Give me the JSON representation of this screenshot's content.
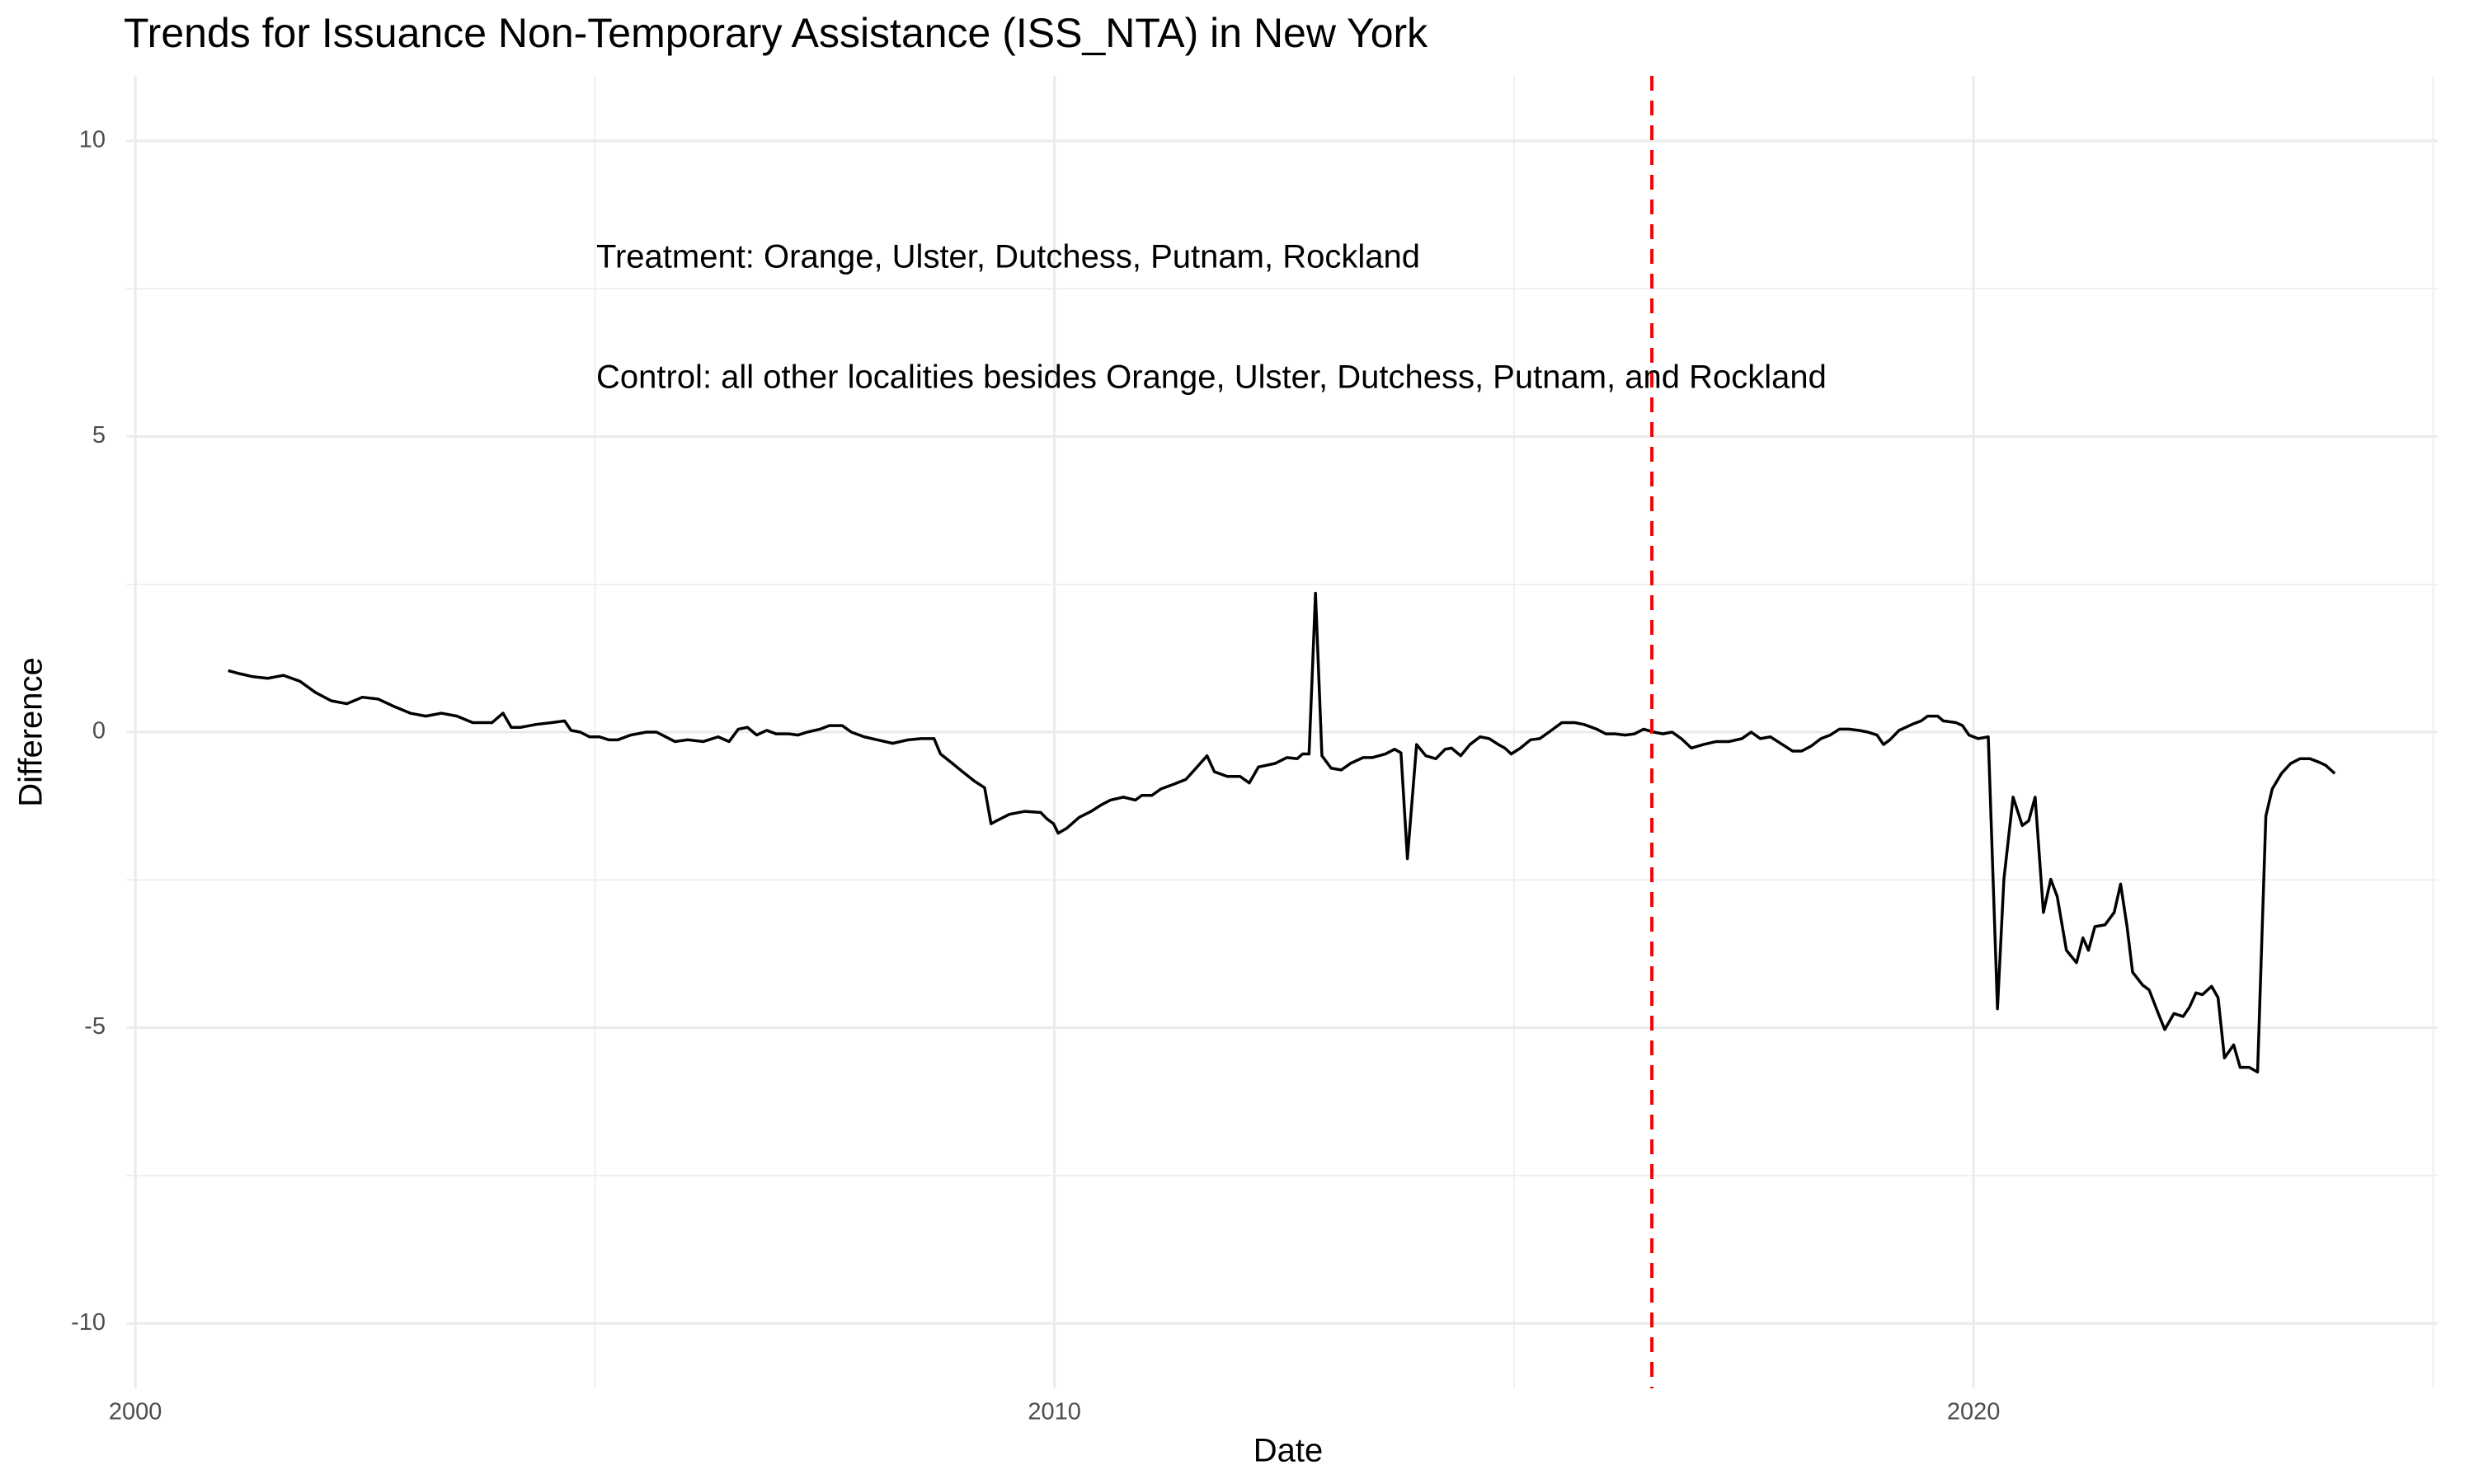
{
  "chart_data": {
    "type": "line",
    "title": "Trends for Issuance Non-Temporary Assistance (ISS_NTA) in New York",
    "x_label": "Date",
    "y_label": "Difference",
    "annotations": [
      "Treatment: Orange, Ulster, Dutchess, Putnam, Rockland",
      "Control: all other localities besides Orange, Ulster, Dutchess, Putnam, and Rockland"
    ],
    "color": "#000000",
    "x": [
      2001.01,
      2001.13,
      2001.27,
      2001.44,
      2001.61,
      2001.79,
      2001.96,
      2002.13,
      2002.3,
      2002.47,
      2002.64,
      2002.82,
      2002.99,
      2003.16,
      2003.33,
      2003.5,
      2003.67,
      2003.88,
      2004.0,
      2004.09,
      2004.19,
      2004.36,
      2004.53,
      2004.67,
      2004.74,
      2004.84,
      2004.94,
      2005.05,
      2005.15,
      2005.25,
      2005.39,
      2005.56,
      2005.67,
      2005.77,
      2005.87,
      2006.01,
      2006.18,
      2006.34,
      2006.46,
      2006.56,
      2006.66,
      2006.76,
      2006.87,
      2006.97,
      2007.11,
      2007.21,
      2007.31,
      2007.45,
      2007.55,
      2007.69,
      2007.79,
      2007.93,
      2008.07,
      2008.24,
      2008.41,
      2008.55,
      2008.69,
      2008.76,
      2008.89,
      2009.0,
      2009.13,
      2009.24,
      2009.31,
      2009.37,
      2009.51,
      2009.68,
      2009.85,
      2009.92,
      2009.99,
      2010.04,
      2010.13,
      2010.27,
      2010.4,
      2010.51,
      2010.61,
      2010.75,
      2010.88,
      2010.95,
      2011.06,
      2011.16,
      2011.3,
      2011.43,
      2011.54,
      2011.66,
      2011.74,
      2011.88,
      2012.02,
      2012.12,
      2012.22,
      2012.4,
      2012.53,
      2012.64,
      2012.7,
      2012.77,
      2012.84,
      2012.91,
      2013.01,
      2013.12,
      2013.22,
      2013.36,
      2013.46,
      2013.6,
      2013.7,
      2013.77,
      2013.84,
      2013.94,
      2014.04,
      2014.15,
      2014.25,
      2014.32,
      2014.42,
      2014.52,
      2014.63,
      2014.73,
      2014.83,
      2014.9,
      2014.97,
      2015.07,
      2015.18,
      2015.28,
      2015.38,
      2015.52,
      2015.66,
      2015.76,
      2015.9,
      2016.0,
      2016.1,
      2016.21,
      2016.31,
      2016.41,
      2016.52,
      2016.62,
      2016.72,
      2016.82,
      2016.93,
      2017.06,
      2017.2,
      2017.34,
      2017.48,
      2017.58,
      2017.68,
      2017.79,
      2017.92,
      2018.03,
      2018.13,
      2018.23,
      2018.34,
      2018.44,
      2018.54,
      2018.64,
      2018.75,
      2018.85,
      2018.95,
      2019.02,
      2019.09,
      2019.19,
      2019.33,
      2019.43,
      2019.5,
      2019.61,
      2019.67,
      2019.81,
      2019.88,
      2019.95,
      2020.05,
      2020.16,
      2020.26,
      2020.33,
      2020.43,
      2020.53,
      2020.6,
      2020.67,
      2020.76,
      2020.84,
      2020.91,
      2021.01,
      2021.12,
      2021.19,
      2021.25,
      2021.32,
      2021.43,
      2021.53,
      2021.6,
      2021.67,
      2021.73,
      2021.84,
      2021.91,
      2022.01,
      2022.08,
      2022.18,
      2022.28,
      2022.35,
      2022.42,
      2022.49,
      2022.59,
      2022.66,
      2022.73,
      2022.83,
      2022.9,
      2023.0,
      2023.09,
      2023.18,
      2023.25,
      2023.35,
      2023.45,
      2023.55,
      2023.66,
      2023.76,
      2023.83,
      2023.93
    ],
    "values": [
      1.04,
      0.99,
      0.94,
      0.91,
      0.96,
      0.86,
      0.67,
      0.53,
      0.48,
      0.59,
      0.56,
      0.43,
      0.32,
      0.27,
      0.32,
      0.27,
      0.16,
      0.16,
      0.32,
      0.08,
      0.08,
      0.13,
      0.16,
      0.19,
      0.03,
      0,
      -0.08,
      -0.08,
      -0.13,
      -0.13,
      -0.05,
      0,
      0,
      -0.08,
      -0.16,
      -0.13,
      -0.16,
      -0.08,
      -0.16,
      0.05,
      0.08,
      -0.05,
      0.03,
      -0.03,
      -0.03,
      -0.05,
      0,
      0.05,
      0.11,
      0.11,
      0,
      -0.08,
      -0.13,
      -0.19,
      -0.13,
      -0.11,
      -0.11,
      -0.37,
      -0.53,
      -0.67,
      -0.83,
      -0.94,
      -1.55,
      -1.5,
      -1.39,
      -1.34,
      -1.36,
      -1.47,
      -1.55,
      -1.71,
      -1.63,
      -1.44,
      -1.34,
      -1.23,
      -1.15,
      -1.1,
      -1.15,
      -1.07,
      -1.07,
      -0.96,
      -0.88,
      -0.8,
      -0.61,
      -0.4,
      -0.67,
      -0.75,
      -0.75,
      -0.86,
      -0.59,
      -0.53,
      -0.43,
      -0.45,
      -0.37,
      -0.37,
      2.35,
      -0.4,
      -0.61,
      -0.64,
      -0.53,
      -0.43,
      -0.43,
      -0.37,
      -0.29,
      -0.35,
      -2.14,
      -0.21,
      -0.4,
      -0.45,
      -0.29,
      -0.27,
      -0.4,
      -0.21,
      -0.08,
      -0.11,
      -0.21,
      -0.27,
      -0.37,
      -0.27,
      -0.13,
      -0.11,
      0,
      0.16,
      0.16,
      0.13,
      0.05,
      -0.03,
      -0.03,
      -0.05,
      -0.03,
      0.05,
      0,
      -0.03,
      0,
      -0.11,
      -0.27,
      -0.21,
      -0.16,
      -0.16,
      -0.11,
      0,
      -0.11,
      -0.08,
      -0.21,
      -0.32,
      -0.32,
      -0.24,
      -0.11,
      -0.05,
      0.05,
      0.05,
      0.03,
      0,
      -0.05,
      -0.21,
      -0.13,
      0.03,
      0.13,
      0.19,
      0.27,
      0.27,
      0.19,
      0.16,
      0.11,
      -0.05,
      -0.11,
      -0.08,
      -4.68,
      -2.49,
      -1.1,
      -1.58,
      -1.5,
      -1.1,
      -3.05,
      -2.49,
      -2.78,
      -3.69,
      -3.9,
      -3.48,
      -3.69,
      -3.29,
      -3.26,
      -3.05,
      -2.57,
      -3.29,
      -4.06,
      -4.28,
      -4.36,
      -4.76,
      -5.03,
      -4.76,
      -4.81,
      -4.65,
      -4.41,
      -4.44,
      -4.3,
      -4.49,
      -5.51,
      -5.29,
      -5.67,
      -5.67,
      -5.75,
      -1.42,
      -0.96,
      -0.7,
      -0.53,
      -0.45,
      -0.45,
      -0.51,
      -0.56,
      -0.7
    ],
    "vline": {
      "x": 2016.5,
      "color": "#ff0000",
      "dashed": true
    },
    "xlim": [
      1999.9,
      2025.05
    ],
    "xticks": [
      2000,
      2010,
      2020
    ],
    "x_minor_ticks": [
      2005,
      2015,
      2025
    ],
    "ylim": [
      -11.1,
      11.1
    ],
    "yticks": [
      -10,
      -5,
      0,
      5,
      10
    ],
    "y_minor_ticks": [
      -7.5,
      -2.5,
      2.5,
      7.5
    ],
    "grid": true
  }
}
